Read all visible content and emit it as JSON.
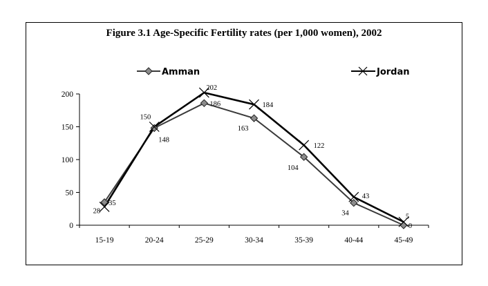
{
  "chart_data": {
    "type": "line",
    "title": "Figure 3.1 Age-Specific Fertility rates (per 1,000 women), 2002",
    "xlabel": "",
    "ylabel": "",
    "categories": [
      "15-19",
      "20-24",
      "25-29",
      "30-34",
      "35-39",
      "40-44",
      "45-49"
    ],
    "ylim": [
      0,
      200
    ],
    "yticks": [
      0,
      50,
      100,
      150,
      200
    ],
    "grid": false,
    "legend_position": "top",
    "series": [
      {
        "name": "Amman",
        "marker": "diamond",
        "color": "#3a3a3a",
        "values": [
          35,
          148,
          186,
          163,
          104,
          34,
          0
        ]
      },
      {
        "name": "Jordan",
        "marker": "x",
        "color": "#000000",
        "values": [
          28,
          150,
          202,
          184,
          122,
          43,
          5
        ]
      }
    ]
  }
}
